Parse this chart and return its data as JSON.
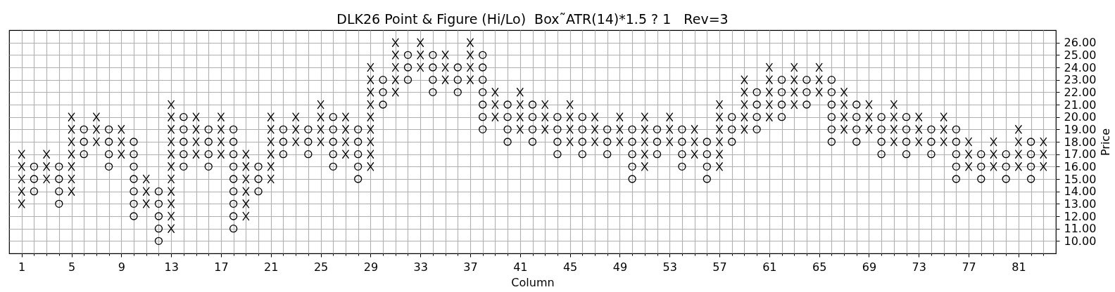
{
  "chart_data": {
    "type": "scatter",
    "title": "DLK26 Point & Figure (Hi/Lo)  Box˜ATR(14)*1.5 ? 1   Rev=3",
    "xlabel": "Column",
    "ylabel": "Price",
    "xlim": [
      0,
      84
    ],
    "ylim": [
      9,
      27
    ],
    "xticks": [
      1,
      {
        "value": 2,
        "label": null
      },
      {
        "value": 3,
        "label": null
      },
      {
        "value": 4,
        "label": null
      },
      5,
      {
        "value": 6,
        "label": null
      },
      {
        "value": 7,
        "label": null
      },
      {
        "value": 8,
        "label": null
      },
      9,
      {
        "value": 10,
        "label": null
      },
      {
        "value": 11,
        "label": null
      },
      {
        "value": 12,
        "label": null
      },
      13,
      {
        "value": 14,
        "label": null
      },
      {
        "value": 15,
        "label": null
      },
      {
        "value": 16,
        "label": null
      },
      17,
      {
        "value": 18,
        "label": null
      },
      {
        "value": 19,
        "label": null
      },
      {
        "value": 20,
        "label": null
      },
      21,
      {
        "value": 22,
        "label": null
      },
      {
        "value": 23,
        "label": null
      },
      {
        "value": 24,
        "label": null
      },
      25,
      {
        "value": 26,
        "label": null
      },
      {
        "value": 27,
        "label": null
      },
      {
        "value": 28,
        "label": null
      },
      29,
      {
        "value": 30,
        "label": null
      },
      {
        "value": 31,
        "label": null
      },
      {
        "value": 32,
        "label": null
      },
      33,
      {
        "value": 34,
        "label": null
      },
      {
        "value": 35,
        "label": null
      },
      {
        "value": 36,
        "label": null
      },
      37,
      {
        "value": 38,
        "label": null
      },
      {
        "value": 39,
        "label": null
      },
      {
        "value": 40,
        "label": null
      },
      41,
      {
        "value": 42,
        "label": null
      },
      {
        "value": 43,
        "label": null
      },
      {
        "value": 44,
        "label": null
      },
      45,
      {
        "value": 46,
        "label": null
      },
      {
        "value": 47,
        "label": null
      },
      {
        "value": 48,
        "label": null
      },
      49,
      {
        "value": 50,
        "label": null
      },
      {
        "value": 51,
        "label": null
      },
      {
        "value": 52,
        "label": null
      },
      53,
      {
        "value": 54,
        "label": null
      },
      {
        "value": 55,
        "label": null
      },
      {
        "value": 56,
        "label": null
      },
      57,
      {
        "value": 58,
        "label": null
      },
      {
        "value": 59,
        "label": null
      },
      {
        "value": 60,
        "label": null
      },
      61,
      {
        "value": 62,
        "label": null
      },
      {
        "value": 63,
        "label": null
      },
      {
        "value": 64,
        "label": null
      },
      65,
      {
        "value": 66,
        "label": null
      },
      {
        "value": 67,
        "label": null
      },
      {
        "value": 68,
        "label": null
      },
      69,
      {
        "value": 70,
        "label": null
      },
      {
        "value": 71,
        "label": null
      },
      {
        "value": 72,
        "label": null
      },
      73,
      {
        "value": 74,
        "label": null
      },
      {
        "value": 75,
        "label": null
      },
      {
        "value": 76,
        "label": null
      },
      77,
      {
        "value": 78,
        "label": null
      },
      {
        "value": 79,
        "label": null
      },
      {
        "value": 80,
        "label": null
      },
      81,
      {
        "value": 82,
        "label": null
      },
      {
        "value": 83,
        "label": null
      }
    ],
    "yticks": [
      {
        "value": 10,
        "label": "10.00"
      },
      {
        "value": 11,
        "label": "11.00"
      },
      {
        "value": 12,
        "label": "12.00"
      },
      {
        "value": 13,
        "label": "13.00"
      },
      {
        "value": 14,
        "label": "14.00"
      },
      {
        "value": 15,
        "label": "15.00"
      },
      {
        "value": 16,
        "label": "16.00"
      },
      {
        "value": 17,
        "label": "17.00"
      },
      {
        "value": 18,
        "label": "18.00"
      },
      {
        "value": 19,
        "label": "19.00"
      },
      {
        "value": 20,
        "label": "20.00"
      },
      {
        "value": 21,
        "label": "21.00"
      },
      {
        "value": 22,
        "label": "22.00"
      },
      {
        "value": 23,
        "label": "23.00"
      },
      {
        "value": 24,
        "label": "24.00"
      },
      {
        "value": 25,
        "label": "25.00"
      },
      {
        "value": 26,
        "label": "26.00"
      }
    ],
    "grid": true,
    "series": [
      {
        "marker": "cross",
        "color": "#000000",
        "x": [
          1,
          1,
          1,
          1,
          1,
          3,
          3,
          3,
          5,
          5,
          5,
          5,
          5,
          5,
          5,
          7,
          7,
          7,
          9,
          9,
          9,
          11,
          11,
          11,
          13,
          13,
          13,
          13,
          13,
          13,
          13,
          13,
          13,
          13,
          13,
          15,
          15,
          15,
          15,
          17,
          17,
          17,
          17,
          19,
          19,
          19,
          19,
          19,
          19,
          21,
          21,
          21,
          21,
          21,
          21,
          23,
          23,
          23,
          25,
          25,
          25,
          25,
          27,
          27,
          27,
          27,
          29,
          29,
          29,
          29,
          29,
          29,
          29,
          29,
          29,
          31,
          31,
          31,
          31,
          31,
          33,
          33,
          33,
          35,
          35,
          35,
          37,
          37,
          37,
          37,
          39,
          39,
          39,
          41,
          41,
          41,
          41,
          43,
          43,
          43,
          45,
          45,
          45,
          45,
          47,
          47,
          47,
          49,
          49,
          49,
          51,
          51,
          51,
          51,
          51,
          53,
          53,
          53,
          55,
          55,
          55,
          57,
          57,
          57,
          57,
          57,
          57,
          59,
          59,
          59,
          59,
          59,
          61,
          61,
          61,
          61,
          61,
          63,
          63,
          63,
          63,
          65,
          65,
          65,
          67,
          67,
          67,
          67,
          69,
          69,
          69,
          71,
          71,
          71,
          71,
          73,
          73,
          73,
          75,
          75,
          75,
          77,
          77,
          77,
          79,
          79,
          79,
          81,
          81,
          81,
          81,
          83,
          83,
          83
        ],
        "values": [
          13,
          14,
          15,
          16,
          17,
          15,
          16,
          17,
          14,
          15,
          16,
          17,
          18,
          19,
          20,
          18,
          19,
          20,
          17,
          18,
          19,
          13,
          14,
          15,
          11,
          12,
          13,
          14,
          15,
          16,
          17,
          18,
          19,
          20,
          21,
          17,
          18,
          19,
          20,
          17,
          18,
          19,
          20,
          12,
          13,
          14,
          15,
          16,
          17,
          15,
          16,
          17,
          18,
          19,
          20,
          18,
          19,
          20,
          18,
          19,
          20,
          21,
          17,
          18,
          19,
          20,
          16,
          17,
          18,
          19,
          20,
          21,
          22,
          23,
          24,
          22,
          23,
          24,
          25,
          26,
          24,
          25,
          26,
          23,
          24,
          25,
          23,
          24,
          25,
          26,
          20,
          21,
          22,
          19,
          20,
          21,
          22,
          19,
          20,
          21,
          18,
          19,
          20,
          21,
          18,
          19,
          20,
          18,
          19,
          20,
          16,
          17,
          18,
          19,
          20,
          18,
          19,
          20,
          17,
          18,
          19,
          16,
          17,
          18,
          19,
          20,
          21,
          19,
          20,
          21,
          22,
          23,
          20,
          21,
          22,
          23,
          24,
          21,
          22,
          23,
          24,
          22,
          23,
          24,
          19,
          20,
          21,
          22,
          19,
          20,
          21,
          18,
          19,
          20,
          21,
          18,
          19,
          20,
          18,
          19,
          20,
          16,
          17,
          18,
          16,
          17,
          18,
          16,
          17,
          18,
          19,
          16,
          17,
          18
        ]
      },
      {
        "marker": "circle",
        "color": "#000000",
        "x": [
          2,
          2,
          2,
          4,
          4,
          4,
          4,
          6,
          6,
          6,
          8,
          8,
          8,
          8,
          10,
          10,
          10,
          10,
          10,
          10,
          10,
          12,
          12,
          12,
          12,
          12,
          14,
          14,
          14,
          14,
          14,
          16,
          16,
          16,
          16,
          18,
          18,
          18,
          18,
          18,
          18,
          18,
          18,
          18,
          20,
          20,
          20,
          22,
          22,
          22,
          24,
          24,
          24,
          26,
          26,
          26,
          26,
          26,
          28,
          28,
          28,
          28,
          28,
          30,
          30,
          30,
          32,
          32,
          32,
          34,
          34,
          34,
          34,
          36,
          36,
          36,
          38,
          38,
          38,
          38,
          38,
          38,
          38,
          40,
          40,
          40,
          40,
          42,
          42,
          42,
          42,
          44,
          44,
          44,
          44,
          46,
          46,
          46,
          46,
          48,
          48,
          48,
          50,
          50,
          50,
          50,
          50,
          52,
          52,
          52,
          54,
          54,
          54,
          54,
          56,
          56,
          56,
          56,
          58,
          58,
          58,
          60,
          60,
          60,
          60,
          62,
          62,
          62,
          62,
          64,
          64,
          64,
          66,
          66,
          66,
          66,
          66,
          66,
          68,
          68,
          68,
          68,
          70,
          70,
          70,
          70,
          72,
          72,
          72,
          72,
          74,
          74,
          74,
          76,
          76,
          76,
          76,
          76,
          78,
          78,
          78,
          80,
          80,
          80,
          82,
          82,
          82,
          82
        ],
        "values": [
          14,
          15,
          16,
          13,
          14,
          15,
          16,
          17,
          18,
          19,
          16,
          17,
          18,
          19,
          12,
          13,
          14,
          15,
          16,
          17,
          18,
          10,
          11,
          12,
          13,
          14,
          16,
          17,
          18,
          19,
          20,
          16,
          17,
          18,
          19,
          11,
          12,
          13,
          14,
          15,
          16,
          17,
          18,
          19,
          14,
          15,
          16,
          17,
          18,
          19,
          17,
          18,
          19,
          16,
          17,
          18,
          19,
          20,
          15,
          16,
          17,
          18,
          19,
          21,
          22,
          23,
          23,
          24,
          25,
          22,
          23,
          24,
          25,
          22,
          23,
          24,
          19,
          20,
          21,
          22,
          23,
          24,
          25,
          18,
          19,
          20,
          21,
          18,
          19,
          20,
          21,
          17,
          18,
          19,
          20,
          17,
          18,
          19,
          20,
          17,
          18,
          19,
          15,
          16,
          17,
          18,
          19,
          17,
          18,
          19,
          16,
          17,
          18,
          19,
          15,
          16,
          17,
          18,
          18,
          19,
          20,
          19,
          20,
          21,
          22,
          20,
          21,
          22,
          23,
          21,
          22,
          23,
          18,
          19,
          20,
          21,
          22,
          23,
          18,
          19,
          20,
          21,
          17,
          18,
          19,
          20,
          17,
          18,
          19,
          20,
          17,
          18,
          19,
          15,
          16,
          17,
          18,
          19,
          15,
          16,
          17,
          15,
          16,
          17,
          15,
          16,
          17,
          18
        ]
      }
    ]
  }
}
